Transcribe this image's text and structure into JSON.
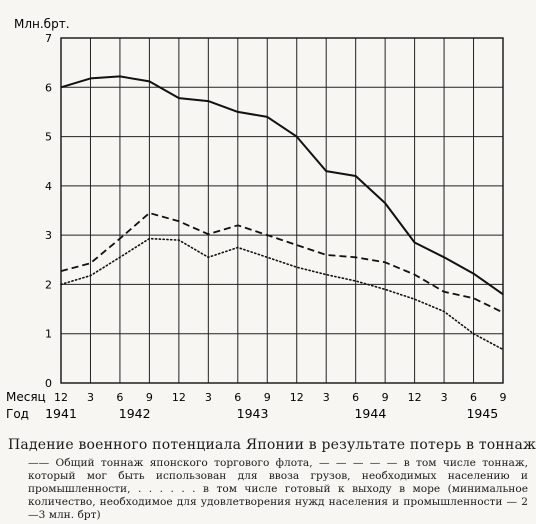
{
  "chart_data": {
    "type": "line",
    "ylabel": "Млн.брт.",
    "ylim": [
      0,
      7
    ],
    "yticks": [
      "0",
      "1",
      "2",
      "3",
      "4",
      "5",
      "6",
      "7"
    ],
    "month_row_label": "Месяц",
    "year_row_label": "Год",
    "x_month_labels": [
      "12",
      "3",
      "6",
      "9",
      "12",
      "3",
      "6",
      "9",
      "12",
      "3",
      "6",
      "9",
      "12",
      "3",
      "6",
      "9"
    ],
    "x_year_labels": [
      {
        "label": "1941",
        "at": 0
      },
      {
        "label": "1942",
        "at": 2.5
      },
      {
        "label": "1943",
        "at": 6.5
      },
      {
        "label": "1944",
        "at": 10.5
      },
      {
        "label": "1945",
        "at": 14.3
      }
    ],
    "grid": true,
    "series": [
      {
        "style": "solid",
        "values": [
          6.0,
          6.18,
          6.22,
          6.12,
          5.78,
          5.72,
          5.5,
          5.4,
          5.0,
          4.3,
          4.2,
          3.65,
          2.85,
          2.55,
          2.22,
          1.8
        ]
      },
      {
        "style": "dashed",
        "values": [
          2.27,
          2.43,
          2.93,
          3.45,
          3.28,
          3.02,
          3.2,
          3.0,
          2.8,
          2.6,
          2.55,
          2.45,
          2.2,
          1.85,
          1.72,
          1.43
        ]
      },
      {
        "style": "dotted",
        "values": [
          2.0,
          2.18,
          2.55,
          2.93,
          2.9,
          2.55,
          2.75,
          2.55,
          2.35,
          2.2,
          2.07,
          1.9,
          1.7,
          1.45,
          1.0,
          0.68
        ]
      }
    ]
  },
  "caption": {
    "title": "Падение военного потенциала Японии в результате потерь в тоннаже",
    "text": "—— Общий тоннаж японского торгового флота, — — — — — в том числе тоннаж, который мог быть использован для ввоза грузов, необходимых населению и промышленности, . . . . . . в том числе готовый к выходу в море (минимальное количество, необходимое для удовлетворения нужд населения и промышленности — 2—3 млн. брт)"
  }
}
